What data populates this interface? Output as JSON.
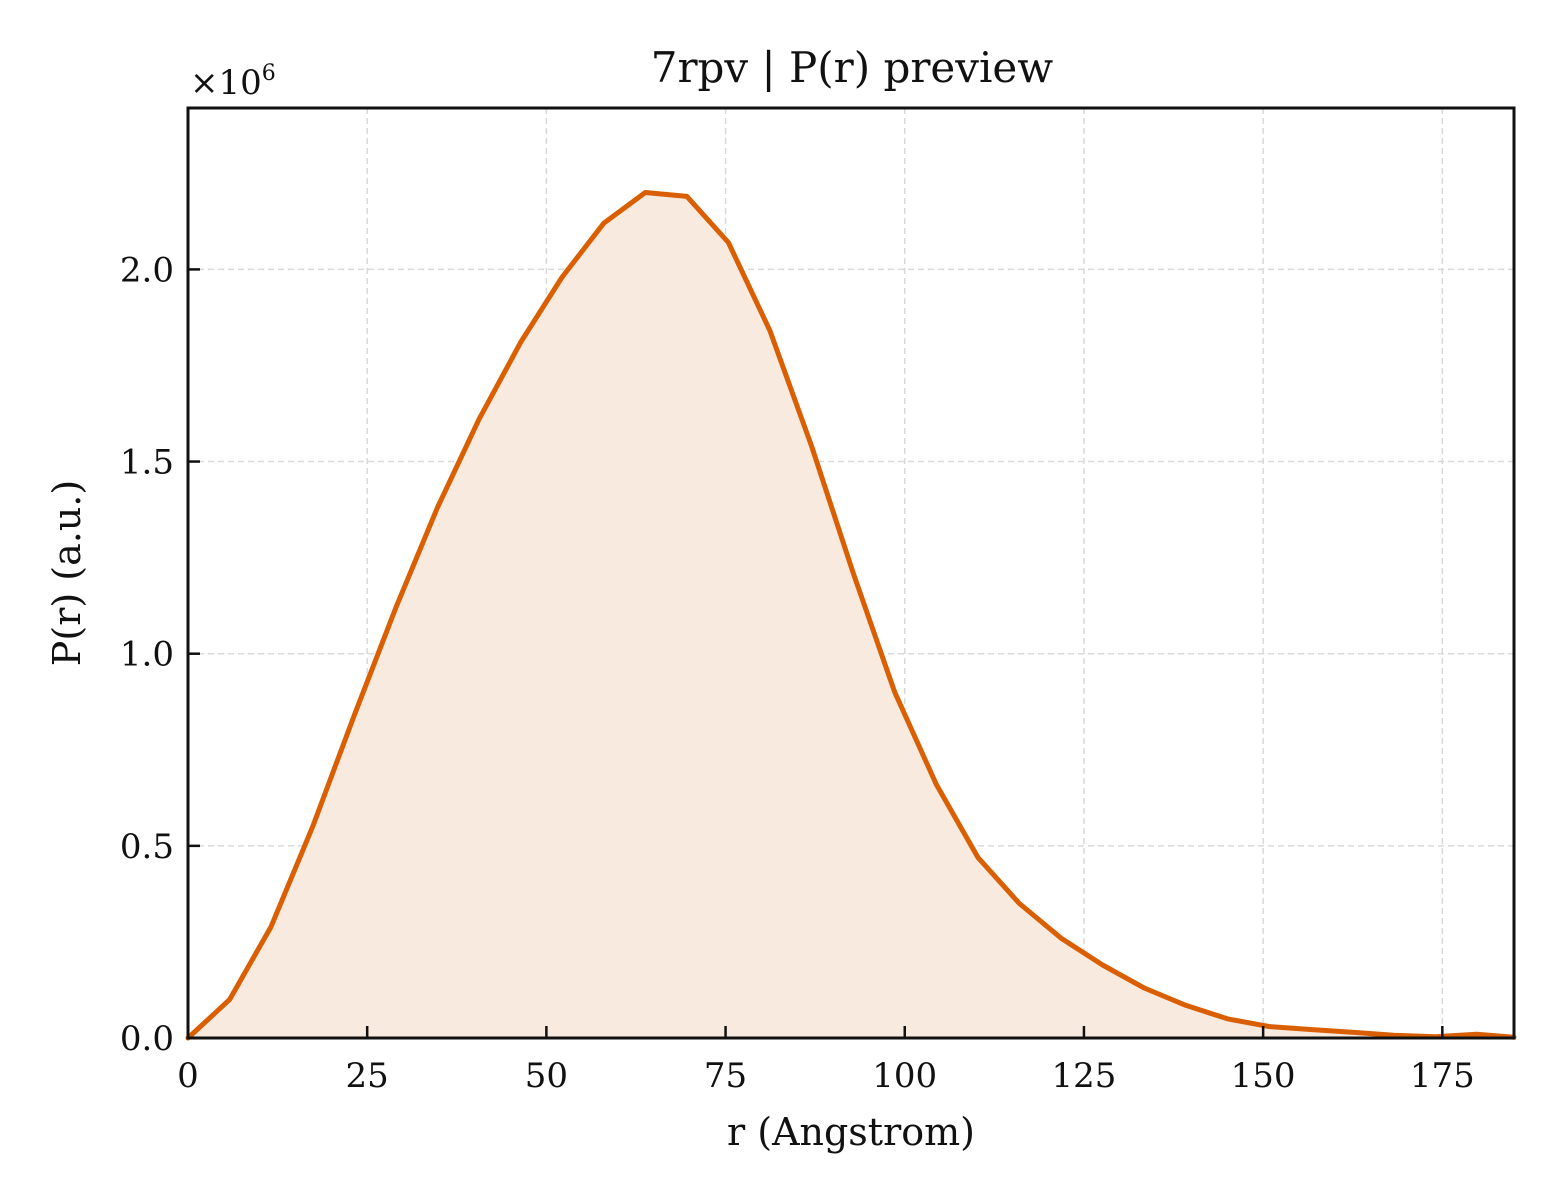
{
  "chart_data": {
    "type": "line",
    "title": "7rpv | P(r) preview",
    "xlabel": "r (Angstrom)",
    "ylabel": "P(r) (a.u.)",
    "y_multiplier_text": "×10",
    "y_multiplier_exponent": "6",
    "xlim": [
      0,
      185
    ],
    "ylim": [
      0,
      2.42
    ],
    "x_ticks": [
      0,
      25,
      50,
      75,
      100,
      125,
      150,
      175
    ],
    "x_tick_labels": [
      "0",
      "25",
      "50",
      "75",
      "100",
      "125",
      "150",
      "175"
    ],
    "y_ticks": [
      0.0,
      0.5,
      1.0,
      1.5,
      2.0
    ],
    "y_tick_labels": [
      "0.0",
      "0.5",
      "1.0",
      "1.5",
      "2.0"
    ],
    "grid": true,
    "fill_under_curve": true,
    "line_color": "#d95f02",
    "fill_color": "#f9eadf",
    "series": [
      {
        "x": [
          0,
          5.8,
          11.6,
          17.4,
          23.2,
          29.0,
          34.8,
          40.6,
          46.4,
          52.2,
          58.0,
          63.8,
          69.6,
          75.4,
          81.2,
          87.0,
          92.8,
          98.6,
          104.4,
          110.2,
          116.0,
          121.8,
          127.6,
          133.4,
          139.2,
          145.0,
          150.8,
          156.6,
          162.4,
          168.2,
          174.0,
          179.8,
          185.0
        ],
        "y": [
          0.0,
          0.1,
          0.29,
          0.55,
          0.84,
          1.12,
          1.38,
          1.61,
          1.81,
          1.98,
          2.12,
          2.2,
          2.19,
          2.07,
          1.84,
          1.54,
          1.21,
          0.9,
          0.66,
          0.47,
          0.35,
          0.26,
          0.19,
          0.13,
          0.085,
          0.05,
          0.03,
          0.022,
          0.015,
          0.007,
          0.003,
          0.01,
          0.002
        ]
      }
    ]
  }
}
